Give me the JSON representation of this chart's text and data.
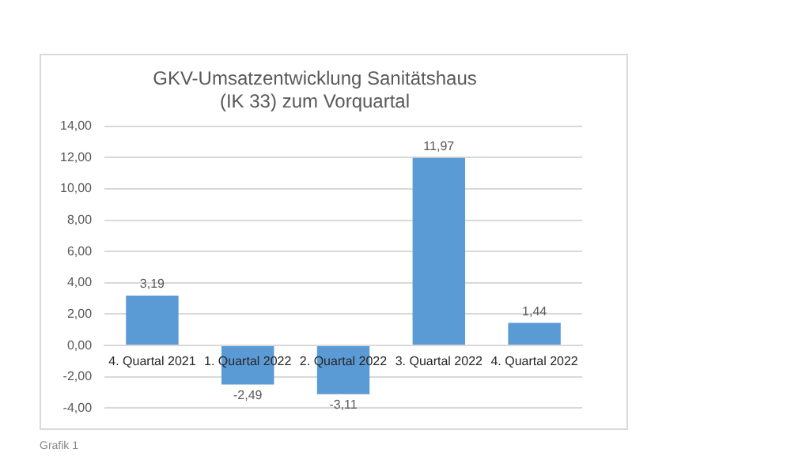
{
  "chart_data": {
    "type": "bar",
    "title": "GKV-Umsatzentwicklung Sanitätshaus\n(IK 33) zum Vorquartal",
    "categories": [
      "4. Quartal 2021",
      "1. Quartal 2022",
      "2. Quartal 2022",
      "3. Quartal 2022",
      "4. Quartal 2022"
    ],
    "values": [
      3.19,
      -2.49,
      -3.11,
      11.97,
      1.44
    ],
    "value_labels": [
      "3,19",
      "-2,49",
      "-3,11",
      "11,97",
      "1,44"
    ],
    "color": "#5b9bd5",
    "ylim": [
      -4,
      14
    ],
    "yticks": [
      {
        "value": -4,
        "label": "-4,00"
      },
      {
        "value": -2,
        "label": "-2,00"
      },
      {
        "value": 0,
        "label": "0,00"
      },
      {
        "value": 2,
        "label": "2,00"
      },
      {
        "value": 4,
        "label": "4,00"
      },
      {
        "value": 6,
        "label": "6,00"
      },
      {
        "value": 8,
        "label": "8,00"
      },
      {
        "value": 10,
        "label": "10,00"
      },
      {
        "value": 12,
        "label": "12,00"
      },
      {
        "value": 14,
        "label": "14,00"
      }
    ],
    "grid": "y",
    "annotations": [
      "Grafik 1"
    ]
  }
}
